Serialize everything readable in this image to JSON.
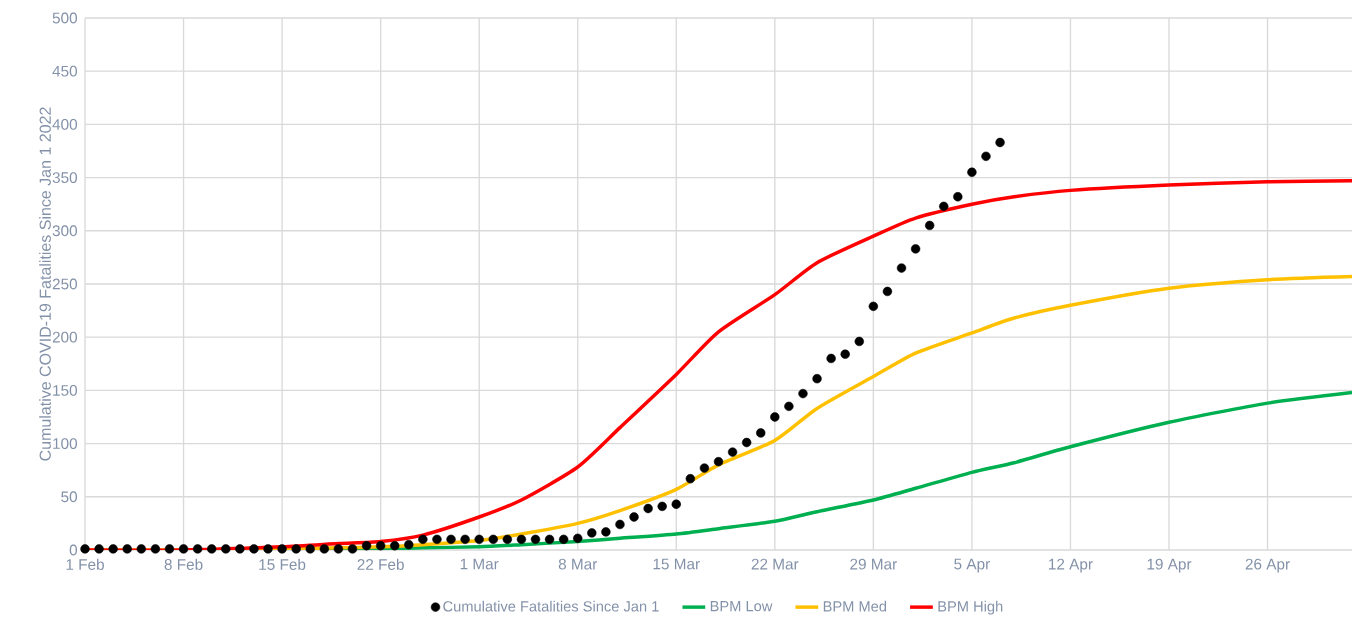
{
  "chart_data": {
    "type": "line",
    "ylabel": "Cumulative COVID-19 Fatalities Since Jan 1 2022",
    "xlim": [
      "2022-02-01",
      "2022-05-02"
    ],
    "xticks": [
      {
        "value": "2022-02-01",
        "label": "1 Feb"
      },
      {
        "value": "2022-02-08",
        "label": "8 Feb"
      },
      {
        "value": "2022-02-15",
        "label": "15 Feb"
      },
      {
        "value": "2022-02-22",
        "label": "22 Feb"
      },
      {
        "value": "2022-03-01",
        "label": "1 Mar"
      },
      {
        "value": "2022-03-08",
        "label": "8 Mar"
      },
      {
        "value": "2022-03-15",
        "label": "15 Mar"
      },
      {
        "value": "2022-03-22",
        "label": "22 Mar"
      },
      {
        "value": "2022-03-29",
        "label": "29 Mar"
      },
      {
        "value": "2022-04-05",
        "label": "5 Apr"
      },
      {
        "value": "2022-04-12",
        "label": "12 Apr"
      },
      {
        "value": "2022-04-19",
        "label": "19 Apr"
      },
      {
        "value": "2022-04-26",
        "label": "26 Apr"
      }
    ],
    "ylim": [
      0,
      500
    ],
    "yticks": [
      0,
      50,
      100,
      150,
      200,
      250,
      300,
      350,
      400,
      450,
      500
    ],
    "grid": true,
    "legend": "bottom",
    "series": [
      {
        "name": "Cumulative Fatalities Since Jan 1",
        "type": "scatter",
        "marker": "circle",
        "color": "#000000",
        "x": [
          "2022-02-01",
          "2022-02-02",
          "2022-02-03",
          "2022-02-04",
          "2022-02-05",
          "2022-02-06",
          "2022-02-07",
          "2022-02-08",
          "2022-02-09",
          "2022-02-10",
          "2022-02-11",
          "2022-02-12",
          "2022-02-13",
          "2022-02-14",
          "2022-02-15",
          "2022-02-16",
          "2022-02-17",
          "2022-02-18",
          "2022-02-19",
          "2022-02-20",
          "2022-02-21",
          "2022-02-22",
          "2022-02-23",
          "2022-02-24",
          "2022-02-25",
          "2022-02-26",
          "2022-02-27",
          "2022-02-28",
          "2022-03-01",
          "2022-03-02",
          "2022-03-03",
          "2022-03-04",
          "2022-03-05",
          "2022-03-06",
          "2022-03-07",
          "2022-03-08",
          "2022-03-09",
          "2022-03-10",
          "2022-03-11",
          "2022-03-12",
          "2022-03-13",
          "2022-03-14",
          "2022-03-15",
          "2022-03-16",
          "2022-03-17",
          "2022-03-18",
          "2022-03-19",
          "2022-03-20",
          "2022-03-21",
          "2022-03-22",
          "2022-03-23",
          "2022-03-24",
          "2022-03-25",
          "2022-03-26",
          "2022-03-27",
          "2022-03-28",
          "2022-03-29",
          "2022-03-30",
          "2022-03-31",
          "2022-04-01",
          "2022-04-02",
          "2022-04-03",
          "2022-04-04",
          "2022-04-05",
          "2022-04-06",
          "2022-04-07"
        ],
        "values": [
          1,
          1,
          1,
          1,
          1,
          1,
          1,
          1,
          1,
          1,
          1,
          1,
          1,
          1,
          1,
          1,
          1,
          1,
          1,
          1,
          4,
          4,
          4,
          5,
          10,
          10,
          10,
          10,
          10,
          10,
          10,
          10,
          10,
          10,
          10,
          11,
          16,
          17,
          24,
          31,
          39,
          41,
          43,
          67,
          77,
          83,
          92,
          101,
          110,
          125,
          135,
          147,
          161,
          180,
          184,
          196,
          229,
          243,
          265,
          283,
          305,
          323,
          332,
          355,
          370,
          383
        ]
      },
      {
        "name": "BPM Low",
        "marker": "none",
        "color": "#00b050",
        "x": [
          "2022-02-15",
          "2022-02-19",
          "2022-02-22",
          "2022-02-25",
          "2022-03-01",
          "2022-03-04",
          "2022-03-08",
          "2022-03-11",
          "2022-03-15",
          "2022-03-18",
          "2022-03-22",
          "2022-03-25",
          "2022-03-29",
          "2022-04-01",
          "2022-04-05",
          "2022-04-08",
          "2022-04-12",
          "2022-04-19",
          "2022-04-26",
          "2022-05-02"
        ],
        "values": [
          0,
          1,
          1,
          2,
          3,
          5,
          8,
          11,
          15,
          20,
          27,
          36,
          47,
          58,
          73,
          82,
          97,
          120,
          138,
          148
        ]
      },
      {
        "name": "BPM Med",
        "marker": "none",
        "color": "#ffc000",
        "x": [
          "2022-02-01",
          "2022-02-08",
          "2022-02-15",
          "2022-02-19",
          "2022-02-22",
          "2022-02-25",
          "2022-03-01",
          "2022-03-04",
          "2022-03-08",
          "2022-03-11",
          "2022-03-15",
          "2022-03-18",
          "2022-03-22",
          "2022-03-25",
          "2022-03-29",
          "2022-04-01",
          "2022-04-05",
          "2022-04-08",
          "2022-04-12",
          "2022-04-19",
          "2022-04-26",
          "2022-05-02"
        ],
        "values": [
          0,
          0,
          1,
          2,
          3,
          5,
          9,
          15,
          25,
          37,
          57,
          80,
          103,
          133,
          163,
          185,
          204,
          218,
          230,
          246,
          254,
          257
        ]
      },
      {
        "name": "BPM High",
        "marker": "none",
        "color": "#ff0000",
        "x": [
          "2022-02-01",
          "2022-02-08",
          "2022-02-15",
          "2022-02-19",
          "2022-02-22",
          "2022-02-25",
          "2022-03-01",
          "2022-03-04",
          "2022-03-08",
          "2022-03-11",
          "2022-03-15",
          "2022-03-18",
          "2022-03-22",
          "2022-03-25",
          "2022-03-29",
          "2022-04-01",
          "2022-04-05",
          "2022-04-08",
          "2022-04-12",
          "2022-04-19",
          "2022-04-26",
          "2022-05-02"
        ],
        "values": [
          0,
          0,
          3,
          6,
          8,
          14,
          31,
          47,
          78,
          115,
          165,
          205,
          240,
          270,
          295,
          312,
          325,
          332,
          338,
          343,
          346,
          347
        ]
      }
    ]
  }
}
